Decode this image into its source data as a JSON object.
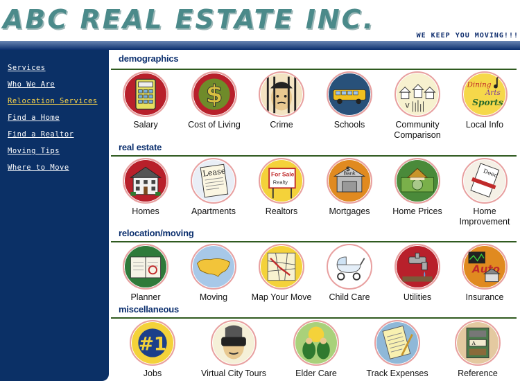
{
  "header": {
    "logo_text": "ABC REAL ESTATE INC.",
    "tagline": "WE KEEP YOU MOVING!!!"
  },
  "sidebar": {
    "items": [
      {
        "label": "Services"
      },
      {
        "label": "Who We Are"
      },
      {
        "label": "Relocation Services"
      },
      {
        "label": "Find a Home"
      },
      {
        "label": "Find a Realtor"
      },
      {
        "label": "Moving Tips"
      },
      {
        "label": "Where to Move"
      }
    ]
  },
  "colors": {
    "sidebar_bg": "#0b3066",
    "active_link": "#ffd84a",
    "section_title": "#0b2f6e",
    "rule": "#2f5a1f",
    "logo": "#4b8a8a"
  },
  "sections": [
    {
      "title": "demographics",
      "items": [
        {
          "label": "Salary",
          "icon": "calculator-icon"
        },
        {
          "label": "Cost of Living",
          "icon": "dollar-sign-icon"
        },
        {
          "label": "Crime",
          "icon": "prisoner-icon"
        },
        {
          "label": "Schools",
          "icon": "school-bus-icon"
        },
        {
          "label": "Community Comparison",
          "icon": "houses-icon"
        },
        {
          "label": "Local Info",
          "icon": "arts-sports-icon"
        }
      ]
    },
    {
      "title": "real estate",
      "items": [
        {
          "label": "Homes",
          "icon": "house-icon"
        },
        {
          "label": "Apartments",
          "icon": "lease-icon"
        },
        {
          "label": "Realtors",
          "icon": "for-sale-sign-icon"
        },
        {
          "label": "Mortgages",
          "icon": "bank-icon"
        },
        {
          "label": "Home Prices",
          "icon": "house-money-icon"
        },
        {
          "label": "Home Improvement",
          "icon": "deed-icon"
        }
      ]
    },
    {
      "title": "relocation/moving",
      "items": [
        {
          "label": "Planner",
          "icon": "planner-icon"
        },
        {
          "label": "Moving",
          "icon": "usa-map-icon"
        },
        {
          "label": "Map Your Move",
          "icon": "street-map-icon"
        },
        {
          "label": "Child Care",
          "icon": "baby-carriage-icon"
        },
        {
          "label": "Utilities",
          "icon": "faucet-icon"
        },
        {
          "label": "Insurance",
          "icon": "auto-insurance-icon"
        }
      ]
    },
    {
      "title": "miscellaneous",
      "items": [
        {
          "label": "Jobs",
          "icon": "number-one-icon"
        },
        {
          "label": "Virtual City Tours",
          "icon": "vr-headset-icon"
        },
        {
          "label": "Elder Care",
          "icon": "elders-icon"
        },
        {
          "label": "Track Expenses",
          "icon": "notepad-icon"
        },
        {
          "label": "Reference",
          "icon": "bookshelf-icon"
        }
      ]
    }
  ]
}
